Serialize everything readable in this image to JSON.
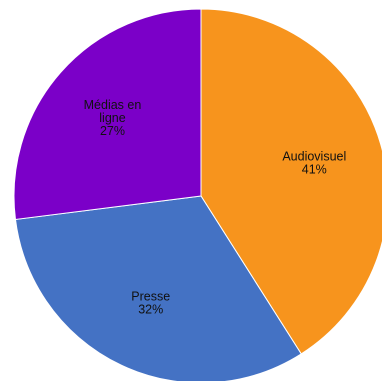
{
  "chart_data": {
    "type": "pie",
    "title": "",
    "slices": [
      {
        "label": "Audiovisuel",
        "label_lines": [
          "Audiovisuel"
        ],
        "value": 41,
        "value_text": "41%",
        "color": "#F7941D"
      },
      {
        "label": "Presse",
        "label_lines": [
          "Presse"
        ],
        "value": 32,
        "value_text": "32%",
        "color": "#4472C4"
      },
      {
        "label": "Médias en ligne",
        "label_lines": [
          "Médias en",
          "ligne"
        ],
        "value": 27,
        "value_text": "27%",
        "color": "#7B00C8"
      }
    ],
    "start": "12 o'clock",
    "direction": "clockwise",
    "legend": "none"
  }
}
